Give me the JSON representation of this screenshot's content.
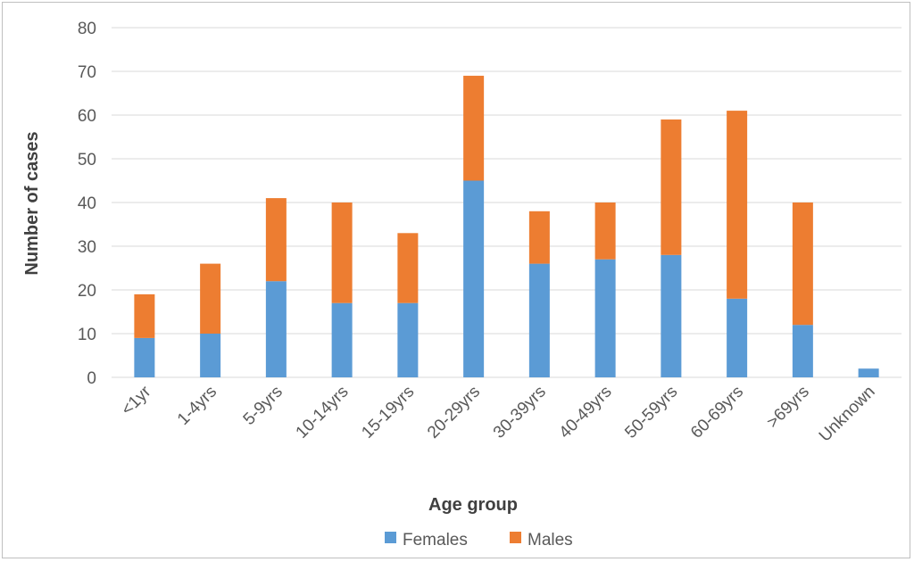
{
  "chart_data": {
    "type": "bar",
    "stacked": true,
    "categories": [
      "<1yr",
      "1-4yrs",
      "5-9yrs",
      "10-14yrs",
      "15-19yrs",
      "20-29yrs",
      "30-39yrs",
      "40-49yrs",
      "50-59yrs",
      "60-69yrs",
      ">69yrs",
      "Unknown"
    ],
    "series": [
      {
        "name": "Females",
        "color": "#5b9bd5",
        "values": [
          9,
          10,
          22,
          17,
          17,
          45,
          26,
          27,
          28,
          18,
          12,
          2
        ]
      },
      {
        "name": "Males",
        "color": "#ed7d31",
        "values": [
          10,
          16,
          19,
          23,
          16,
          24,
          12,
          13,
          31,
          43,
          28,
          0
        ]
      }
    ],
    "title": "",
    "xlabel": "Age group",
    "ylabel": "Number of cases",
    "ylim": [
      0,
      80
    ],
    "yticks": [
      "0",
      "10",
      "20",
      "30",
      "40",
      "50",
      "60",
      "70",
      "80"
    ],
    "grid": true,
    "legend": "bottom"
  }
}
